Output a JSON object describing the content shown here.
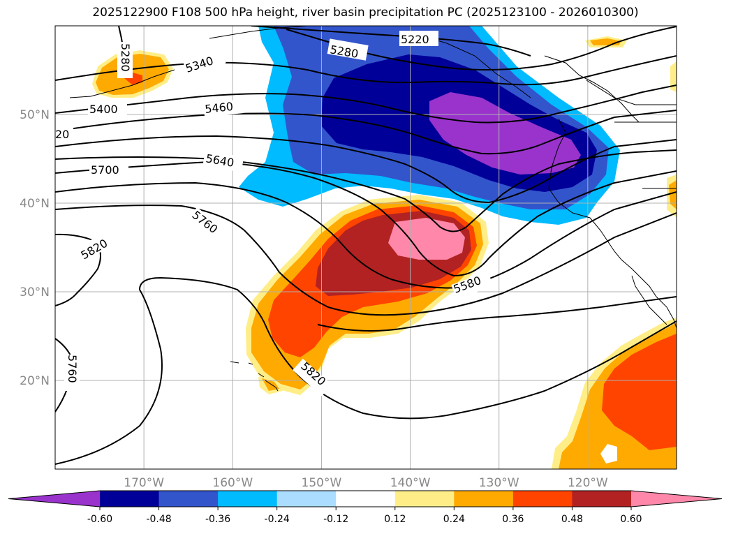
{
  "title": "2025122900 F108 500 hPa height, river basin precipitation PC (2025123100 - 2026010300)",
  "chart_data": {
    "type": "contour-map",
    "title": "2025122900 F108 500 hPa height, river basin precipitation PC (2025123100 - 2026010300)",
    "lon_range": [
      -180,
      -110
    ],
    "lat_range": [
      10,
      60
    ],
    "lon_ticks": [
      "170°W",
      "160°W",
      "150°W",
      "140°W",
      "130°W",
      "120°W"
    ],
    "lon_tick_values": [
      -170,
      -160,
      -150,
      -140,
      -130,
      -120
    ],
    "lat_ticks": [
      "20°N",
      "30°N",
      "40°N",
      "50°N"
    ],
    "lat_tick_values": [
      20,
      30,
      40,
      50
    ],
    "grid": true,
    "contour_variable": "500 hPa height (m)",
    "contour_labels": [
      "5280",
      "5340",
      "5280",
      "5220",
      "5400",
      "5460",
      "20",
      "5640",
      "5700",
      "5760",
      "5820",
      "5580",
      "5820",
      "5760"
    ],
    "colorbar": {
      "ticks": [
        "-0.60",
        "-0.48",
        "-0.36",
        "-0.24",
        "-0.12",
        "0.12",
        "0.24",
        "0.36",
        "0.48",
        "0.60"
      ],
      "levels": [
        -0.6,
        -0.48,
        -0.36,
        -0.24,
        -0.12,
        0.12,
        0.24,
        0.36,
        0.48,
        0.6
      ],
      "colors": [
        "#9933cc",
        "#000099",
        "#3355cc",
        "#00bbff",
        "#aaddff",
        "#ffffff",
        "#ffee88",
        "#ffaa00",
        "#ff4400",
        "#b22222",
        "#ff88aa"
      ],
      "extend": "both"
    },
    "features": [
      {
        "name": "negative anomaly over Gulf of Alaska / Pacific Northwest",
        "min_value": -0.6
      },
      {
        "name": "positive anomaly subtropical NE Pacific",
        "max_value": 0.6
      },
      {
        "name": "positive anomaly off Baja California",
        "max_value": 0.48
      },
      {
        "name": "positive anomaly south of Bering Sea",
        "max_value": 0.36
      }
    ]
  }
}
